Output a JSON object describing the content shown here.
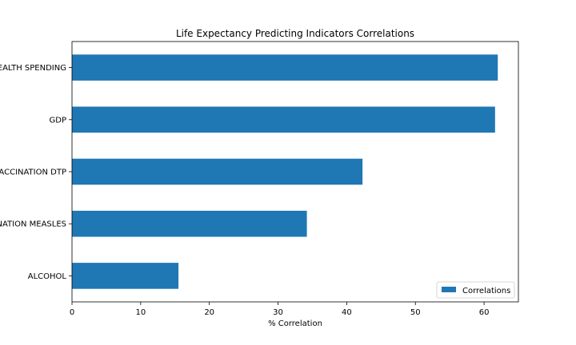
{
  "chart_data": {
    "type": "bar",
    "orientation": "horizontal",
    "title": "Life Expectancy Predicting Indicators Correlations",
    "xlabel": "% Correlation",
    "ylabel": "",
    "categories": [
      "ALCOHOL",
      "VACCINATION MEASLES",
      "VACCINATION DTP",
      "GDP",
      "HEALTH SPENDING"
    ],
    "series": [
      {
        "name": "Correlations",
        "values": [
          15.5,
          34.2,
          42.3,
          61.6,
          62.0
        ],
        "color": "#1f77b4"
      }
    ],
    "xlim": [
      0,
      65
    ],
    "xticks": [
      0,
      10,
      20,
      30,
      40,
      50,
      60
    ],
    "grid": false,
    "legend_position": "lower-right"
  }
}
